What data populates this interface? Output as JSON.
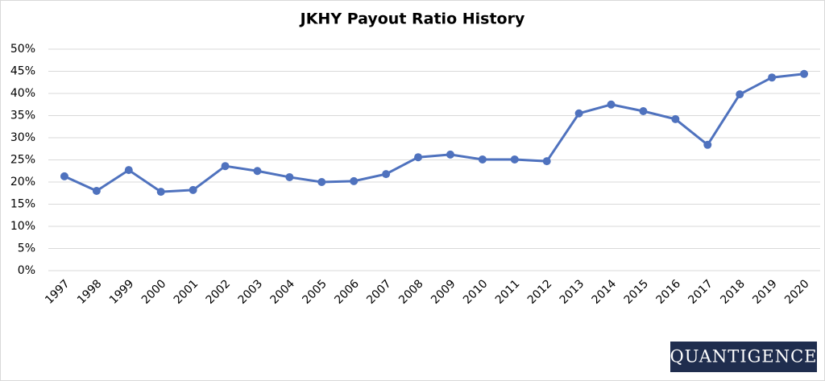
{
  "chart_data": {
    "type": "line",
    "title": "JKHY Payout Ratio History",
    "categories": [
      "1997",
      "1998",
      "1999",
      "2000",
      "2001",
      "2002",
      "2003",
      "2004",
      "2005",
      "2006",
      "2007",
      "2008",
      "2009",
      "2010",
      "2011",
      "2012",
      "2013",
      "2014",
      "2015",
      "2016",
      "2017",
      "2018",
      "2019",
      "2020"
    ],
    "values": [
      21.3,
      18.0,
      22.7,
      17.8,
      18.2,
      23.6,
      22.5,
      21.1,
      20.0,
      20.2,
      21.8,
      25.6,
      26.2,
      25.1,
      25.1,
      24.7,
      35.5,
      37.5,
      36.0,
      34.2,
      28.4,
      39.8,
      43.6,
      44.4
    ],
    "color": "#4f72be",
    "ylim": [
      0,
      50
    ],
    "yticks": [
      {
        "value": 0,
        "label": "0%"
      },
      {
        "value": 5,
        "label": "5%"
      },
      {
        "value": 10,
        "label": "10%"
      },
      {
        "value": 15,
        "label": "15%"
      },
      {
        "value": 20,
        "label": "20%"
      },
      {
        "value": 25,
        "label": "25%"
      },
      {
        "value": 30,
        "label": "30%"
      },
      {
        "value": 35,
        "label": "35%"
      },
      {
        "value": 40,
        "label": "40%"
      },
      {
        "value": 45,
        "label": "45%"
      },
      {
        "value": 50,
        "label": "50%"
      }
    ],
    "grid": true,
    "watermark": "QUANTIGENCE"
  }
}
